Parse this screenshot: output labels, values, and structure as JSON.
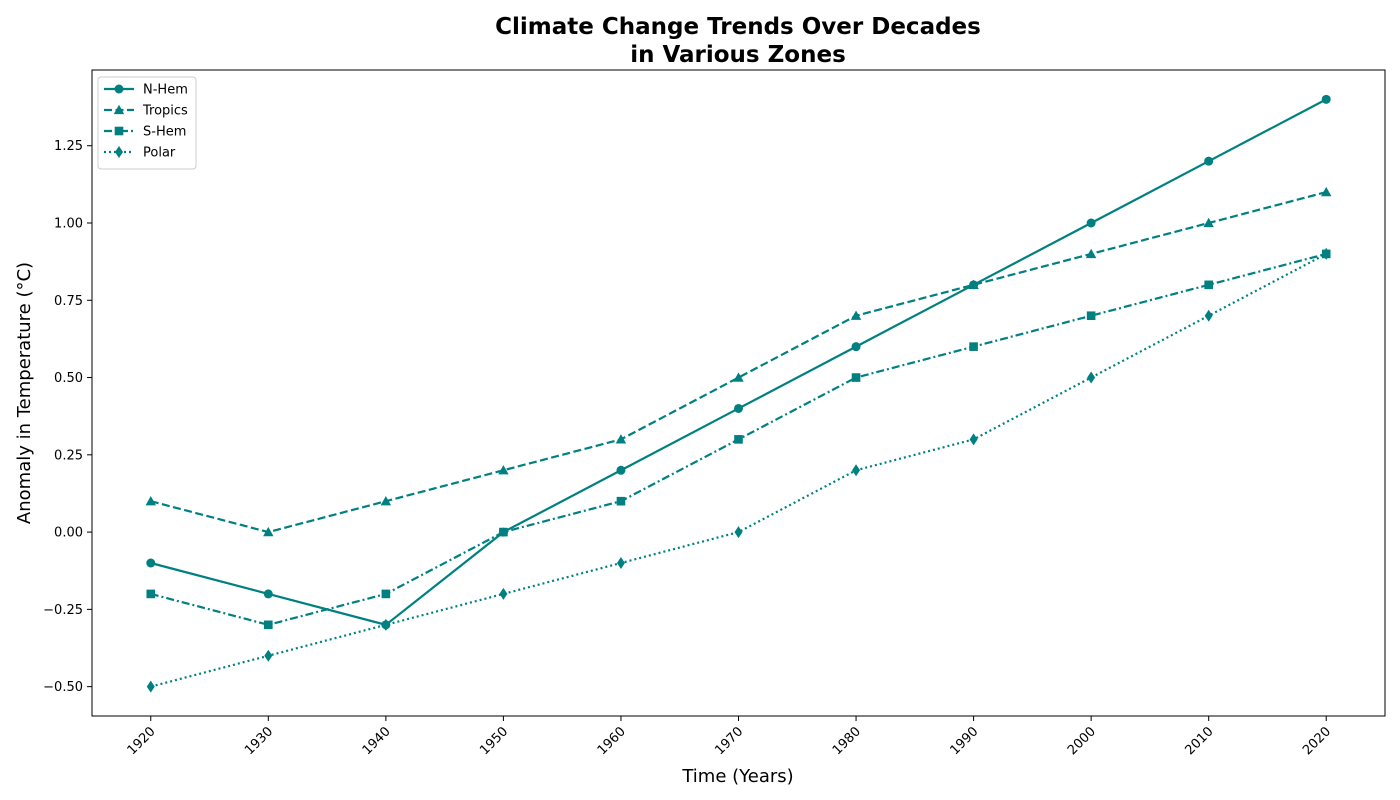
{
  "chart_data": {
    "type": "line",
    "title_lines": [
      "Climate Change Trends Over Decades",
      "in Various Zones"
    ],
    "xlabel": "Time (Years)",
    "ylabel": "Anomaly in Temperature (°C)",
    "x": [
      1920,
      1930,
      1940,
      1950,
      1960,
      1970,
      1980,
      1990,
      2000,
      2010,
      2020
    ],
    "x_tick_labels": [
      "1920",
      "1930",
      "1940",
      "1950",
      "1960",
      "1970",
      "1980",
      "1990",
      "2000",
      "2010",
      "2020"
    ],
    "xlim": [
      1915,
      2025
    ],
    "ylim": [
      -0.595,
      1.495
    ],
    "y_ticks": [
      -0.5,
      -0.25,
      0.0,
      0.25,
      0.5,
      0.75,
      1.0,
      1.25
    ],
    "y_tick_labels": [
      "−0.50",
      "−0.25",
      "0.00",
      "0.25",
      "0.50",
      "0.75",
      "1.00",
      "1.25"
    ],
    "x_tick_rotation": 45,
    "grid": false,
    "legend_position": "top-left",
    "color": "#008080",
    "series": [
      {
        "name": "N-Hem",
        "marker": "circle",
        "linestyle": "solid",
        "values": [
          -0.1,
          -0.2,
          -0.3,
          0.0,
          0.2,
          0.4,
          0.6,
          0.8,
          1.0,
          1.2,
          1.4
        ]
      },
      {
        "name": "Tropics",
        "marker": "triangle",
        "linestyle": "dashed",
        "values": [
          0.1,
          0.0,
          0.1,
          0.2,
          0.3,
          0.5,
          0.7,
          0.8,
          0.9,
          1.0,
          1.1
        ]
      },
      {
        "name": "S-Hem",
        "marker": "square",
        "linestyle": "dashdot",
        "values": [
          -0.2,
          -0.3,
          -0.2,
          0.0,
          0.1,
          0.3,
          0.5,
          0.6,
          0.7,
          0.8,
          0.9
        ]
      },
      {
        "name": "Polar",
        "marker": "diamond",
        "linestyle": "dotted",
        "values": [
          -0.5,
          -0.4,
          -0.3,
          -0.2,
          -0.1,
          0.0,
          0.2,
          0.3,
          0.5,
          0.7,
          0.9
        ]
      }
    ]
  }
}
